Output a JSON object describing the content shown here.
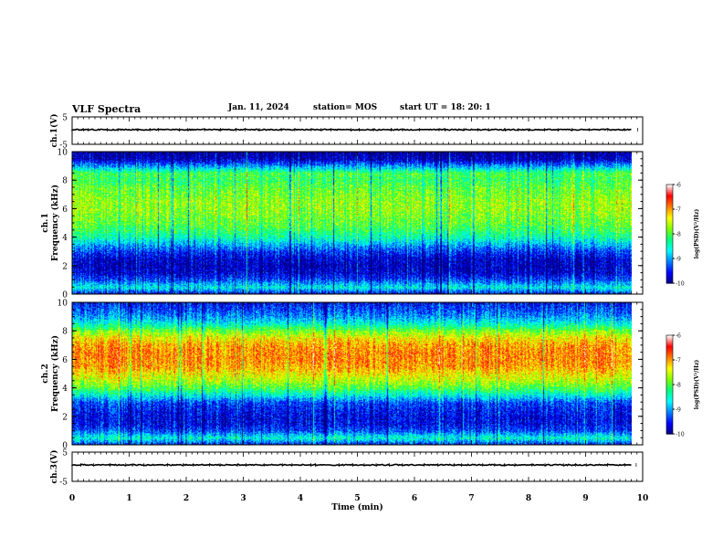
{
  "header": {
    "title": "VLF Spectra",
    "date": "Jan. 11, 2024",
    "station": "station= MOS",
    "start": "start UT =   18: 20: 1"
  },
  "colors": {
    "colormap": [
      "#000080",
      "#0000ff",
      "#0080ff",
      "#00ffff",
      "#00ff80",
      "#80ff00",
      "#ffff00",
      "#ff8000",
      "#ff0000",
      "#ffffff"
    ],
    "trace": "#000000"
  },
  "chart_data": [
    {
      "type": "line",
      "panel": "ch1-waveform",
      "ylabel": "ch.1(V)",
      "ylim": [
        -5,
        5
      ],
      "yticks": [
        5,
        -5
      ],
      "x": [
        0,
        9.8
      ],
      "values": [
        0,
        0
      ]
    },
    {
      "type": "heatmap",
      "panel": "ch1-spectrogram",
      "ylabel": "ch.1\nFrequency (kHz)",
      "ylim": [
        0,
        10
      ],
      "yticks": [
        0,
        2,
        4,
        6,
        8,
        10
      ],
      "xlim": [
        0,
        9.8
      ],
      "colorbar": {
        "label": "log(PSD)(V²/Hz)",
        "range": [
          -10,
          -6
        ],
        "ticks": [
          -6,
          -7,
          -8,
          -9,
          -10
        ]
      },
      "band_profile_khz": [
        0,
        0.5,
        1,
        1.5,
        2,
        2.5,
        3,
        3.5,
        4,
        4.5,
        5,
        5.5,
        6,
        6.5,
        7,
        7.5,
        8,
        8.5,
        9,
        9.5,
        10
      ],
      "band_profile_logpsd": [
        -9.6,
        -8.6,
        -9.3,
        -9.7,
        -9.8,
        -9.7,
        -9.4,
        -8.9,
        -8.4,
        -8.1,
        -7.9,
        -7.8,
        -7.7,
        -7.7,
        -7.8,
        -7.9,
        -8.1,
        -8.0,
        -9.0,
        -9.8,
        -9.9
      ]
    },
    {
      "type": "heatmap",
      "panel": "ch2-spectrogram",
      "ylabel": "ch.2\nFrequency (kHz)",
      "ylim": [
        0,
        10
      ],
      "yticks": [
        0,
        2,
        4,
        6,
        8,
        10
      ],
      "xlim": [
        0,
        9.8
      ],
      "colorbar": {
        "label": "log(PSD)(V²/Hz)",
        "range": [
          -10,
          -6
        ],
        "ticks": [
          -6,
          -7,
          -8,
          -9,
          -10
        ]
      },
      "band_profile_khz": [
        0,
        0.5,
        1,
        1.5,
        2,
        2.5,
        3,
        3.5,
        4,
        4.5,
        5,
        5.5,
        6,
        6.5,
        7,
        7.5,
        8,
        8.5,
        9,
        9.5,
        10
      ],
      "band_profile_logpsd": [
        -9.5,
        -8.5,
        -9.3,
        -9.6,
        -9.6,
        -9.5,
        -9.3,
        -8.6,
        -8.0,
        -7.6,
        -7.3,
        -7.0,
        -6.9,
        -6.9,
        -7.0,
        -7.3,
        -7.8,
        -8.5,
        -9.0,
        -9.3,
        -9.5
      ]
    },
    {
      "type": "line",
      "panel": "ch3-waveform",
      "ylabel": "ch.3(V)",
      "ylim": [
        -5,
        5
      ],
      "yticks": [
        5,
        -5
      ],
      "x": [
        0,
        9.8
      ],
      "values": [
        0,
        0
      ]
    }
  ],
  "xaxis": {
    "label": "Time (min)",
    "xlim": [
      0,
      10
    ],
    "ticks": [
      "0",
      "1",
      "2",
      "3",
      "4",
      "5",
      "6",
      "7",
      "8",
      "9",
      "10"
    ]
  }
}
